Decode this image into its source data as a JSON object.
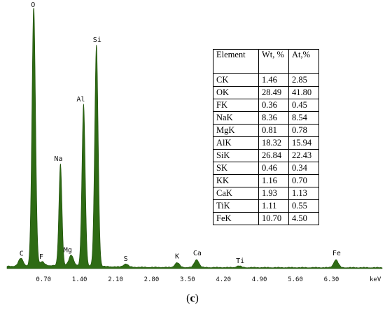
{
  "chart_data": {
    "type": "area",
    "x_unit": "keV",
    "xlim": [
      0,
      7.3
    ],
    "ylim": [
      0,
      1
    ],
    "y_scale": "relative intensity",
    "x_ticks": [
      "0.70",
      "1.40",
      "2.10",
      "2.80",
      "3.50",
      "4.20",
      "4.90",
      "5.60",
      "6.30"
    ],
    "fill_color": "#2e6b14",
    "edge_color": "#1f4f0a",
    "peaks": [
      {
        "label": "C",
        "x": 0.27,
        "height": 0.03
      },
      {
        "label": "O",
        "x": 0.52,
        "height": 1.0
      },
      {
        "label": "F",
        "x": 0.68,
        "height": 0.015
      },
      {
        "label": "Na",
        "x": 1.04,
        "height": 0.39
      },
      {
        "label": "Mg",
        "x": 1.25,
        "height": 0.04
      },
      {
        "label": "Al",
        "x": 1.49,
        "height": 0.62
      },
      {
        "label": "Si",
        "x": 1.74,
        "height": 0.85
      },
      {
        "label": "S",
        "x": 2.31,
        "height": 0.012
      },
      {
        "label": "K",
        "x": 3.31,
        "height": 0.018
      },
      {
        "label": "Ca",
        "x": 3.69,
        "height": 0.03
      },
      {
        "label": "Ti",
        "x": 4.51,
        "height": 0.006
      },
      {
        "label": "Fe",
        "x": 6.4,
        "height": 0.03
      }
    ]
  },
  "table": {
    "headers": [
      "Element",
      "Wt, %",
      "At,%"
    ],
    "rows": [
      [
        "CK",
        "1.46",
        "2.85"
      ],
      [
        "OK",
        "28.49",
        "41.80"
      ],
      [
        "FK",
        "0.36",
        "0.45"
      ],
      [
        "NaK",
        "8.36",
        "8.54"
      ],
      [
        "MgK",
        "0.81",
        "0.78"
      ],
      [
        "AlK",
        "18.32",
        "15.94"
      ],
      [
        "SiK",
        "26.84",
        "22.43"
      ],
      [
        "SK",
        "0.46",
        "0.34"
      ],
      [
        "KK",
        "1.16",
        "0.70"
      ],
      [
        "CaK",
        "1.93",
        "1.13"
      ],
      [
        "TiK",
        "1.11",
        "0.55"
      ],
      [
        "FeK",
        "10.70",
        "4.50"
      ]
    ]
  },
  "caption": {
    "open": "(",
    "letter": "c",
    "close": ")"
  }
}
